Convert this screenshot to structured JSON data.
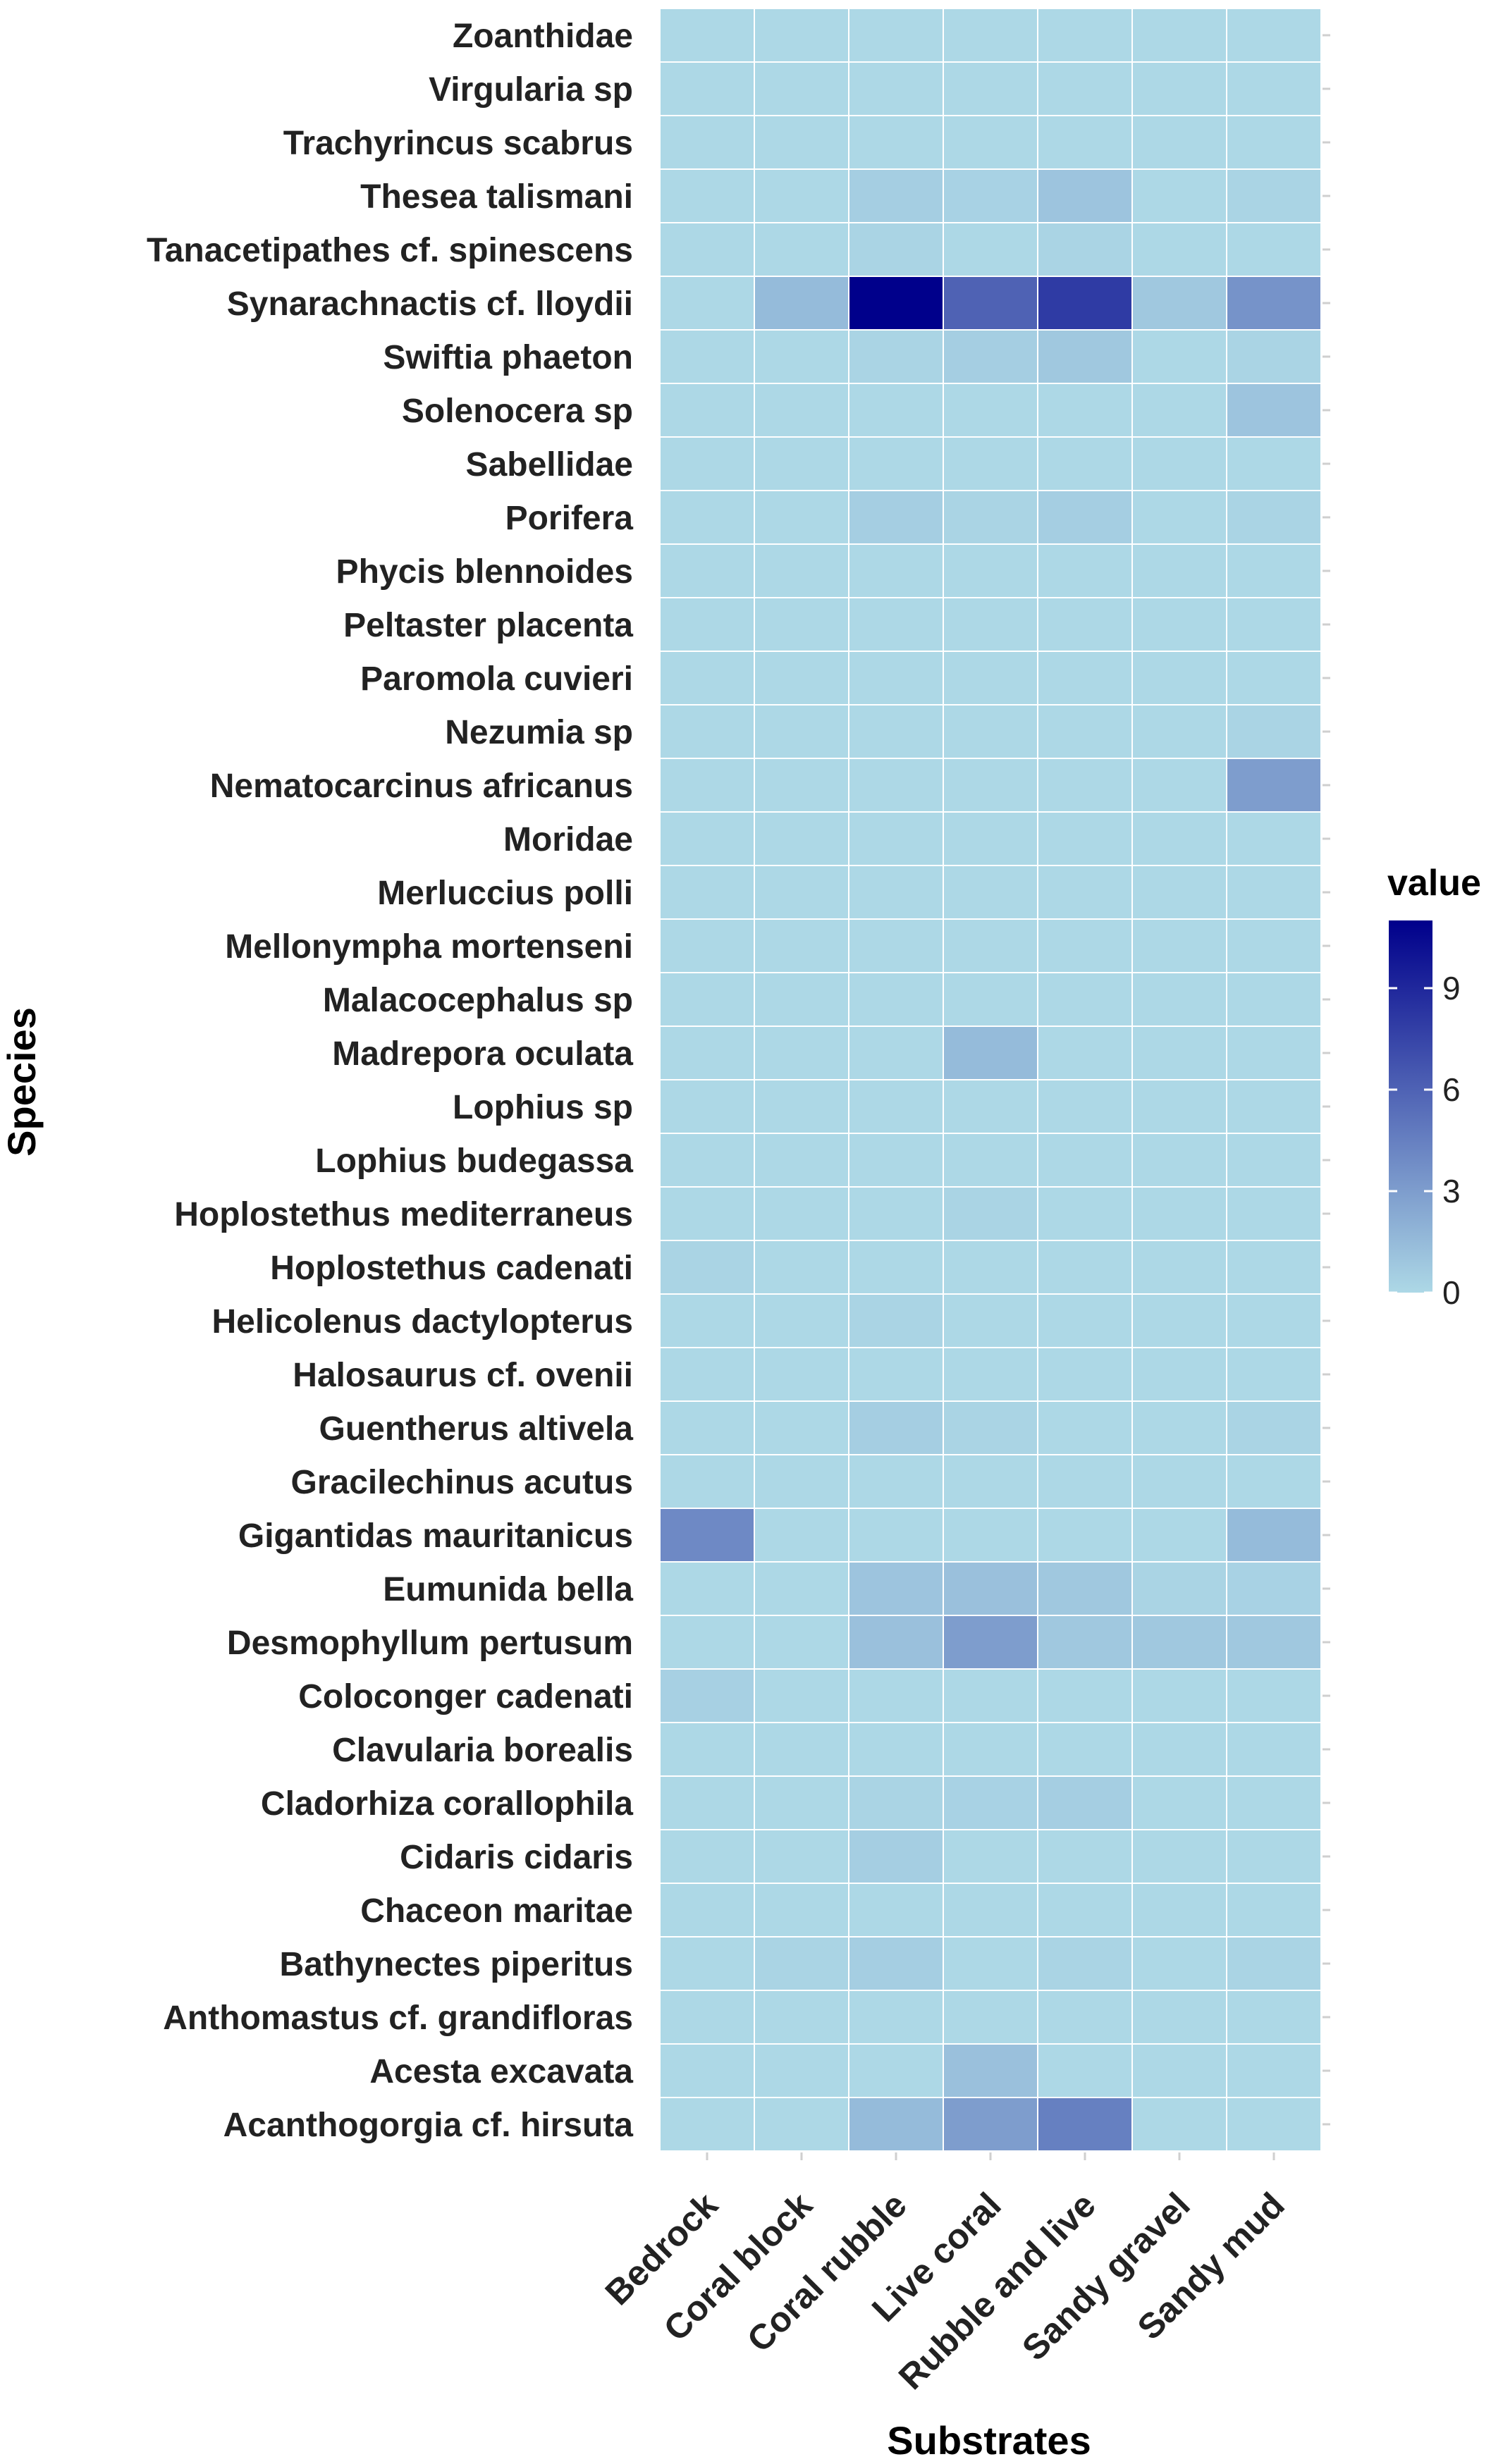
{
  "chart_data": {
    "type": "heatmap",
    "title": "",
    "xlabel": "Substrates",
    "ylabel": "Species",
    "x_categories": [
      "Bedrock",
      "Coral block",
      "Coral rubble",
      "Live coral",
      "Rubble and live",
      "Sandy gravel",
      "Sandy mud"
    ],
    "y_categories_top_to_bottom": [
      "Zoanthidae",
      "Virgularia sp",
      "Trachyrincus scabrus",
      "Thesea talismani",
      "Tanacetipathes cf. spinescens",
      "Synarachnactis cf. lloydii",
      "Swiftia phaeton",
      "Solenocera sp",
      "Sabellidae",
      "Porifera",
      "Phycis blennoides ",
      "Peltaster placenta",
      "Paromola cuvieri",
      "Nezumia sp",
      "Nematocarcinus africanus",
      "Moridae",
      "Merluccius polli",
      "Mellonympha mortenseni",
      "Malacocephalus sp",
      "Madrepora oculata",
      "Lophius sp",
      "Lophius budegassa",
      "Hoplostethus mediterraneus",
      "Hoplostethus cadenati",
      "Helicolenus dactylopterus",
      "Halosaurus cf. ovenii",
      "Guentherus altivela",
      "Gracilechinus acutus",
      "Gigantidas mauritanicus",
      "Eumunida bella",
      "Desmophyllum pertusum",
      "Coloconger cadenati ",
      "Clavularia borealis",
      "Cladorhiza corallophila",
      "Cidaris cidaris",
      "Chaceon maritae",
      "Bathynectes piperitus",
      "Anthomastus cf. grandifloras",
      "Acesta excavata",
      "Acanthogorgia cf. hirsuta"
    ],
    "values": [
      [
        0,
        0,
        0,
        0,
        0,
        0,
        0
      ],
      [
        0,
        0,
        0,
        0,
        0,
        0,
        0
      ],
      [
        0,
        0,
        0,
        0,
        0,
        0,
        0
      ],
      [
        0,
        0,
        0.5,
        0.3,
        1,
        0,
        0.2
      ],
      [
        0,
        0,
        0.2,
        0,
        0.2,
        0,
        0
      ],
      [
        0,
        1.5,
        11,
        6,
        8,
        0.8,
        3.5
      ],
      [
        0,
        0,
        0.2,
        0.5,
        0.8,
        0,
        0.2
      ],
      [
        0,
        0,
        0,
        0,
        0,
        0,
        1
      ],
      [
        0,
        0,
        0,
        0,
        0,
        0,
        0
      ],
      [
        0,
        0,
        0.5,
        0.2,
        0.5,
        0,
        0.2
      ],
      [
        0,
        0,
        0,
        0,
        0,
        0,
        0
      ],
      [
        0,
        0,
        0,
        0,
        0,
        0,
        0
      ],
      [
        0,
        0,
        0,
        0,
        0,
        0,
        0
      ],
      [
        0,
        0,
        0,
        0,
        0,
        0,
        0.2
      ],
      [
        0,
        0,
        0,
        0,
        0,
        0,
        3
      ],
      [
        0,
        0,
        0,
        0,
        0,
        0,
        0
      ],
      [
        0,
        0,
        0,
        0,
        0,
        0,
        0
      ],
      [
        0,
        0,
        0,
        0,
        0,
        0,
        0
      ],
      [
        0,
        0,
        0,
        0,
        0,
        0,
        0
      ],
      [
        0,
        0,
        0,
        1.5,
        0,
        0,
        0
      ],
      [
        0,
        0,
        0,
        0,
        0,
        0,
        0
      ],
      [
        0,
        0,
        0,
        0,
        0,
        0,
        0
      ],
      [
        0,
        0,
        0,
        0.2,
        0,
        0,
        0
      ],
      [
        0.2,
        0,
        0,
        0,
        0,
        0,
        0
      ],
      [
        0,
        0,
        0.2,
        0,
        0,
        0,
        0
      ],
      [
        0,
        0,
        0,
        0,
        0,
        0,
        0
      ],
      [
        0,
        0,
        0.5,
        0.2,
        0,
        0,
        0.2
      ],
      [
        0,
        0,
        0,
        0,
        0,
        0,
        0
      ],
      [
        4,
        0,
        0,
        0,
        0,
        0,
        1.5
      ],
      [
        0,
        0,
        1,
        1.2,
        0.8,
        0.2,
        0.3
      ],
      [
        0,
        0,
        1.2,
        3,
        0.8,
        0.8,
        0.8
      ],
      [
        0.4,
        0,
        0,
        0,
        0,
        0,
        0
      ],
      [
        0,
        0,
        0,
        0,
        0,
        0,
        0
      ],
      [
        0,
        0,
        0.2,
        0.3,
        0.5,
        0,
        0
      ],
      [
        0,
        0,
        0.5,
        0,
        0,
        0,
        0
      ],
      [
        0,
        0,
        0,
        0,
        0,
        0,
        0
      ],
      [
        0,
        0.2,
        0.5,
        0,
        0.2,
        0,
        0.2
      ],
      [
        0,
        0,
        0,
        0,
        0,
        0,
        0
      ],
      [
        0,
        0,
        0,
        1.2,
        0,
        0,
        0
      ],
      [
        0,
        0,
        1.5,
        3,
        4.5,
        0,
        0
      ]
    ],
    "color_scale": {
      "title": "value",
      "low_color": "#add8e6",
      "high_color": "#00008b",
      "range": [
        0,
        11
      ],
      "ticks": [
        0,
        3,
        6,
        9
      ],
      "tick_labels": [
        "0",
        "3",
        "6",
        "9"
      ]
    },
    "legend_position": "right",
    "grid": true
  }
}
